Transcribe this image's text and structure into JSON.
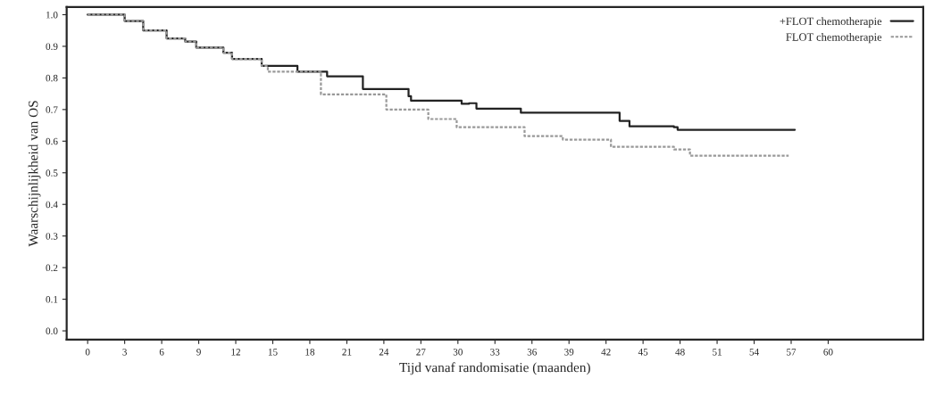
{
  "chart_data": {
    "type": "step",
    "xlabel": "Tijd vanaf randomisatie (maanden)",
    "ylabel": "Waarschijnlijkheid van OS",
    "xlim": [
      -1.7,
      67.7
    ],
    "ylim": [
      -0.028,
      1.024
    ],
    "xticks": [
      0,
      3,
      6,
      9,
      12,
      15,
      18,
      21,
      24,
      27,
      30,
      33,
      36,
      39,
      42,
      45,
      48,
      51,
      54,
      57,
      60
    ],
    "yticks": [
      {
        "value": 0,
        "label": "0.0"
      },
      0.1,
      0.2,
      0.3,
      0.4,
      0.5,
      0.6,
      0.7,
      0.8,
      0.9,
      {
        "value": 1,
        "label": "1.0"
      }
    ],
    "grid": false,
    "legend": "top right",
    "series": [
      {
        "name": "+FLOT chemotherapie",
        "color": "#222222",
        "line_style": "solid",
        "x": [
          0,
          3,
          4.5,
          6.4,
          7.9,
          8.8,
          11,
          11.7,
          14.1,
          17,
          19.4,
          22.3,
          26,
          26.2,
          30.3,
          30.9,
          31.5,
          35.1,
          43.1,
          43.9,
          47.5,
          47.8,
          57.3
        ],
        "values": [
          1.0,
          0.98,
          0.95,
          0.925,
          0.915,
          0.896,
          0.88,
          0.86,
          0.838,
          0.82,
          0.805,
          0.765,
          0.742,
          0.728,
          0.718,
          0.72,
          0.703,
          0.69,
          0.664,
          0.647,
          0.644,
          0.636,
          0.636
        ]
      },
      {
        "name": "FLOT chemotherapie",
        "color": "#999999",
        "line_style": "dashed",
        "x": [
          0,
          3,
          4.5,
          6.4,
          7.9,
          8.8,
          11,
          11.7,
          14.1,
          14.6,
          18.9,
          24.2,
          27.6,
          29.9,
          35.4,
          38.5,
          42.4,
          47.5,
          48.8,
          56.8
        ],
        "values": [
          1.0,
          0.98,
          0.95,
          0.925,
          0.915,
          0.896,
          0.88,
          0.86,
          0.838,
          0.82,
          0.748,
          0.7,
          0.67,
          0.644,
          0.616,
          0.605,
          0.582,
          0.574,
          0.554,
          0.554
        ]
      }
    ]
  }
}
